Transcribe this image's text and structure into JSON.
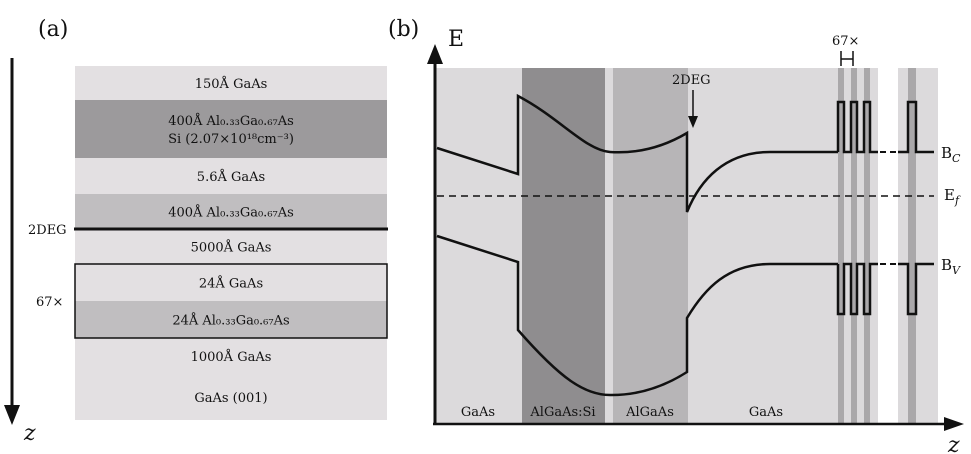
{
  "panel_a": {
    "label": "(a)",
    "axis_label": "z",
    "layers": [
      {
        "line1": "150Å GaAs",
        "line2": "",
        "fill": "#e3e0e2"
      },
      {
        "line1": "400Å Al₀.₃₃Ga₀.₆₇As",
        "line2": "Si (2.07×10¹⁸cm⁻³)",
        "fill": "#9c9a9c"
      },
      {
        "line1": "5.6Å GaAs",
        "line2": "",
        "fill": "#e3e0e2"
      },
      {
        "line1": "400Å Al₀.₃₃Ga₀.₆₇As",
        "line2": "",
        "fill": "#c0bec0"
      },
      {
        "line1": "5000Å GaAs",
        "line2": "",
        "fill": "#e3e0e2"
      },
      {
        "line1": "24Å GaAs",
        "line2": "",
        "fill": "#e3e0e2"
      },
      {
        "line1": "24Å Al₀.₃₃Ga₀.₆₇As",
        "line2": "",
        "fill": "#c0bec0"
      },
      {
        "line1": "1000Å GaAs",
        "line2": "",
        "fill": "#e3e0e2"
      },
      {
        "line1": "GaAs (001)",
        "line2": "",
        "fill": "#e3e0e2"
      }
    ],
    "twodeg_label": "2DEG",
    "repeat_label": "67×"
  },
  "panel_b": {
    "label": "(b)",
    "y_axis_label": "E",
    "x_axis_label": "z",
    "region_labels": [
      "GaAs",
      "AlGaAs:Si",
      "AlGaAs",
      "GaAs"
    ],
    "twodeg_label": "2DEG",
    "repeat_label": "67×",
    "band_labels": {
      "conduction": "B",
      "conduction_sub": "C",
      "fermi": "E",
      "fermi_sub": "f",
      "valence": "B",
      "valence_sub": "V"
    }
  }
}
